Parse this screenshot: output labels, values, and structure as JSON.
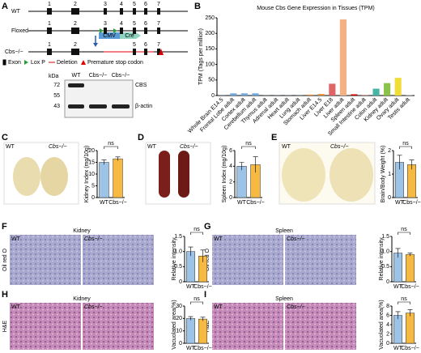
{
  "panel_letters": [
    "A",
    "B",
    "C",
    "D",
    "E",
    "F",
    "G",
    "H",
    "I"
  ],
  "gene_model": {
    "rows": [
      "WT",
      "Floxed",
      "Cbs−/−"
    ],
    "exons": [
      "1",
      "2",
      "3",
      "4",
      "5",
      "6",
      "7"
    ],
    "cmv": "CMV",
    "cre": "Cre",
    "legend": [
      "Exon",
      "Lox P",
      "Deletion",
      "Premature stop codon"
    ]
  },
  "blot": {
    "unit": "kDa",
    "markers": [
      "72",
      "55",
      "43"
    ],
    "lanes": [
      "WT",
      "Cbs−/−",
      "Cbs−/−"
    ],
    "bands": [
      "CBS",
      "β-actin"
    ]
  },
  "image_labels": [
    "WT",
    "Cbs−/−"
  ],
  "tissue_titles": [
    "Kidney",
    "Spleen",
    "Kidney",
    "Spleen"
  ],
  "stain_labels": [
    "Oil red O",
    "H&E"
  ],
  "chart_data": [
    {
      "type": "bar",
      "title": "Mouse Cbs Gene Expression in Tissues (TPM)",
      "ylabel": "TPM (Tags per million)",
      "categories": [
        "Whole Brain E14.5",
        "Frontal Lobe adult",
        "Cortex adult",
        "Cerebellum adult",
        "Thymus adult",
        "Adrenal adult",
        "Heart adult",
        "Lung adult",
        "Stomach adult",
        "Liver E14.5",
        "Liver E18",
        "Liver adult",
        "Spleen adult",
        "Small Intestine adult",
        "Colon adult",
        "Kidney adult",
        "Ovary adult",
        "Testis adult"
      ],
      "values": [
        0.5,
        7,
        7,
        7,
        0.5,
        0.5,
        0.5,
        0.5,
        3,
        5,
        38,
        245,
        4,
        1,
        22,
        40,
        57,
        1
      ],
      "colors": [
        "#6fa8dc",
        "#6fa8dc",
        "#6fa8dc",
        "#6fa8dc",
        "#6fa8dc",
        "#6fa8dc",
        "#6fa8dc",
        "#6fa8dc",
        "#e69138",
        "#e69138",
        "#e06666",
        "#f4b183",
        "#cc0000",
        "#cc4125",
        "#45b5a5",
        "#8bc34a",
        "#f1dd38",
        "#9e9e9e"
      ],
      "ylim": [
        0,
        250
      ],
      "yticks": [
        0,
        50,
        100,
        150,
        200,
        250
      ]
    },
    {
      "type": "bar",
      "ylabel": "Kidney Index (mg/10g)",
      "annotation": "ns",
      "categories": [
        "WT",
        "Cbs−/−"
      ],
      "values": [
        15,
        16.5
      ],
      "errors": [
        1,
        0.8
      ],
      "colors": [
        "#9dc3e6",
        "#f6b942"
      ],
      "ylim": [
        0,
        20
      ],
      "yticks": [
        0,
        5,
        10,
        15,
        20
      ]
    },
    {
      "type": "bar",
      "ylabel": "Spleen Index (mg/10g)",
      "annotation": "ns",
      "categories": [
        "WT",
        "Cbs−/−"
      ],
      "values": [
        4,
        4.2
      ],
      "errors": [
        0.5,
        1
      ],
      "colors": [
        "#9dc3e6",
        "#f6b942"
      ],
      "ylim": [
        0,
        6
      ],
      "yticks": [
        0,
        2,
        4,
        6
      ]
    },
    {
      "type": "bar",
      "ylabel": "Brain/Body Weight (%)",
      "annotation": "ns",
      "categories": [
        "WT",
        "Cbs−/−"
      ],
      "values": [
        1.5,
        1.4
      ],
      "errors": [
        0.3,
        0.2
      ],
      "colors": [
        "#9dc3e6",
        "#f6b942"
      ],
      "ylim": [
        0,
        2
      ],
      "yticks": [
        0,
        1,
        2
      ]
    },
    {
      "type": "bar",
      "ylabel": "Relative intensity",
      "annotation": "ns",
      "categories": [
        "WT",
        "Cbs−/−"
      ],
      "values": [
        1.0,
        0.85
      ],
      "errors": [
        0.15,
        0.2
      ],
      "colors": [
        "#9dc3e6",
        "#f6b942"
      ],
      "ylim": [
        0,
        1.5
      ],
      "yticks": [
        0,
        0.5,
        {
          "value": 1,
          "label": "1.0"
        },
        1.5
      ]
    },
    {
      "type": "bar",
      "ylabel": "Relative intensity",
      "annotation": "ns",
      "categories": [
        "WT",
        "Cbs−/−"
      ],
      "values": [
        0.95,
        0.9
      ],
      "errors": [
        0.15,
        0.05
      ],
      "colors": [
        "#9dc3e6",
        "#f6b942"
      ],
      "ylim": [
        0,
        1.5
      ],
      "yticks": [
        0,
        0.5,
        {
          "value": 1,
          "label": "1.0"
        },
        1.5
      ]
    },
    {
      "type": "bar",
      "ylabel": "Vacuolated area(%)",
      "annotation": "ns",
      "categories": [
        "WT",
        "Cbs−/−"
      ],
      "values": [
        20,
        19.5
      ],
      "errors": [
        1.5,
        1.5
      ],
      "colors": [
        "#9dc3e6",
        "#f6b942"
      ],
      "ylim": [
        0,
        30
      ],
      "yticks": [
        0,
        10,
        20,
        30
      ]
    },
    {
      "type": "bar",
      "ylabel": "Vacuolated area(%)",
      "annotation": "ns",
      "categories": [
        "WT",
        "Cbs−/−"
      ],
      "values": [
        6,
        6.5
      ],
      "errors": [
        0.8,
        0.7
      ],
      "colors": [
        "#9dc3e6",
        "#f6b942"
      ],
      "ylim": [
        0,
        8
      ],
      "yticks": [
        0,
        2,
        4,
        6,
        8
      ]
    }
  ]
}
